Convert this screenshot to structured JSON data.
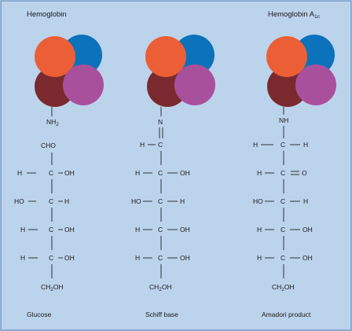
{
  "colors": {
    "background": "#bcd3ec",
    "border": "#6f98c8",
    "subunit_orange": "#ec5e35",
    "subunit_blue": "#0b72bb",
    "subunit_maroon": "#7a2a2e",
    "subunit_purple": "#a9509c"
  },
  "panels": [
    {
      "title": "Hemoglobin",
      "title_sub": "",
      "linker": "NH",
      "linker_sub": "2",
      "top_group": "CHO",
      "rows": [
        {
          "left": "H",
          "right": "OH"
        },
        {
          "left": "HO",
          "right": "H"
        },
        {
          "left": "H",
          "right": "OH"
        },
        {
          "left": "H",
          "right": "OH"
        }
      ],
      "bottom_group": {
        "prefix": "CH",
        "sub": "2",
        "suffix": "OH"
      },
      "caption": "Glucose"
    },
    {
      "title": "",
      "title_sub": "",
      "linker": "N",
      "linker_sub": "",
      "top_group": "H",
      "top_carbon": "C",
      "rows": [
        {
          "left": "H",
          "right": "OH"
        },
        {
          "left": "HO",
          "right": "H"
        },
        {
          "left": "H",
          "right": "OH"
        },
        {
          "left": "H",
          "right": "OH"
        }
      ],
      "bottom_group": {
        "prefix": "CH",
        "sub": "2",
        "suffix": "OH"
      },
      "caption": "Schiff base"
    },
    {
      "title": "Hemoglobin A",
      "title_sub": "1c",
      "linker": "NH",
      "linker_sub": "",
      "top_row": {
        "left": "H",
        "center": "C",
        "right": "H"
      },
      "rows": [
        {
          "left": "H",
          "right": "O"
        },
        {
          "left": "HO",
          "right": "H"
        },
        {
          "left": "H",
          "right": "OH"
        },
        {
          "left": "H",
          "right": "OH"
        }
      ],
      "bottom_group": {
        "prefix": "CH",
        "sub": "2",
        "suffix": "OH"
      },
      "caption": "Amadori product"
    }
  ],
  "atom_carbon": "C"
}
